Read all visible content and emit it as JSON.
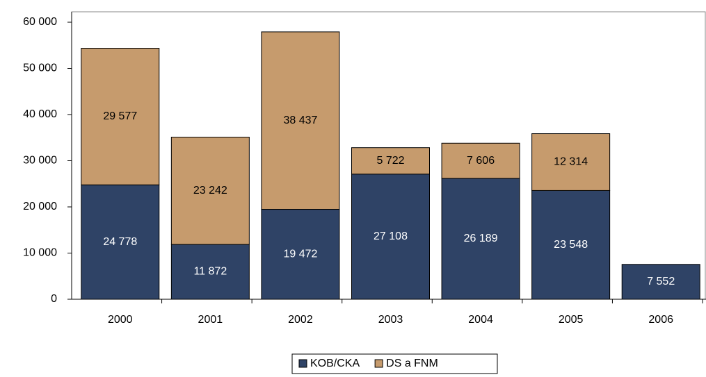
{
  "chart_data": {
    "type": "stacked_bar",
    "categories": [
      "2000",
      "2001",
      "2002",
      "2003",
      "2004",
      "2005",
      "2006"
    ],
    "series": [
      {
        "name": "KOB/CKA",
        "color": "#2f4366",
        "values": [
          24778,
          11872,
          19472,
          27108,
          26189,
          23548,
          7552
        ],
        "value_labels": [
          "24 778",
          "11 872",
          "19 472",
          "27 108",
          "26 189",
          "23 548",
          "7 552"
        ]
      },
      {
        "name": "DS a FNM",
        "color": "#c69b6d",
        "values": [
          29577,
          23242,
          38437,
          5722,
          7606,
          12314,
          null
        ],
        "value_labels": [
          "29 577",
          "23 242",
          "38 437",
          "5 722",
          "7 606",
          "12 314",
          null
        ]
      }
    ],
    "ylim": [
      0,
      60000
    ],
    "yticks": [
      0,
      {
        "value": 10000,
        "label": "10 000"
      },
      {
        "value": 20000,
        "label": "20 000"
      },
      {
        "value": 30000,
        "label": "30 000"
      },
      {
        "value": 40000,
        "label": "40 000"
      },
      {
        "value": 50000,
        "label": "50 000"
      },
      {
        "value": 60000,
        "label": "60 000"
      }
    ],
    "grid": false
  }
}
